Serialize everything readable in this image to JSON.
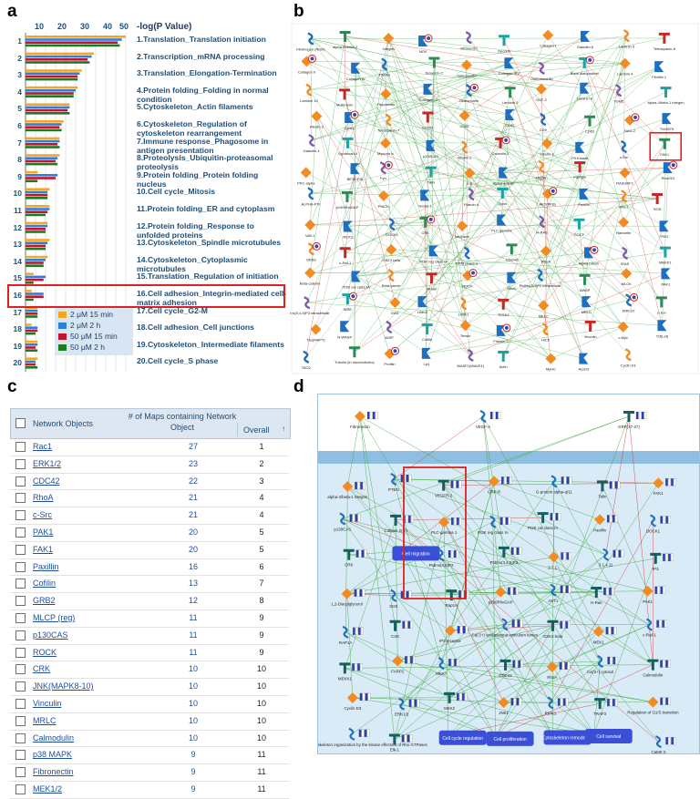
{
  "panels": {
    "a": "a",
    "b": "b",
    "c": "c",
    "d": "d"
  },
  "panel_a": {
    "axis_title": "-log(P Value)",
    "axis_ticks": [
      "10",
      "20",
      "30",
      "40",
      "50"
    ],
    "rows": [
      {
        "num": "1",
        "label": "1.Translation_Translation initiation"
      },
      {
        "num": "2",
        "label": "2.Transcription_mRNA processing"
      },
      {
        "num": "3",
        "label": "3.Translation_Elongation-Termination"
      },
      {
        "num": "4",
        "label": "4.Protein folding_Folding in normal condition"
      },
      {
        "num": "5",
        "label": "5.Cytoskeleton_Actin filaments"
      },
      {
        "num": "6",
        "label": "6.Cytoskeleton_Regulation of cytoskeleton rearrangement"
      },
      {
        "num": "7",
        "label": "7.Immune response_Phagosome in antigen presentation"
      },
      {
        "num": "8",
        "label": "8.Proteolysis_Ubiquitin-proteasomal proteolysis"
      },
      {
        "num": "9",
        "label": "9.Protein folding_Protein folding nucleus"
      },
      {
        "num": "10",
        "label": "10.Cell cycle_Mitosis"
      },
      {
        "num": "11",
        "label": "11.Protein folding_ER and cytoplasm"
      },
      {
        "num": "12",
        "label": "12.Protein folding_Response to unfolded proteins"
      },
      {
        "num": "13",
        "label": "13.Cytoskeleton_Spindle microtubules"
      },
      {
        "num": "14",
        "label": "14.Cytoskeleton_Cytoplasmic microtubules"
      },
      {
        "num": "15",
        "label": "15.Translation_Regulation of initiation"
      },
      {
        "num": "16",
        "label": "16.Cell adhesion_Integrin-mediated cell-matrix adhesion"
      },
      {
        "num": "17",
        "label": "17.Cell cycle_G2-M"
      },
      {
        "num": "18",
        "label": "18.Cell adhesion_Cell junctions"
      },
      {
        "num": "19",
        "label": "19.Cytoskeleton_Intermediate filaments"
      },
      {
        "num": "20",
        "label": "20.Cell cycle_S phase"
      }
    ],
    "legend": [
      {
        "label": "2 μM 15 min",
        "color": "#f5a623"
      },
      {
        "label": "2 μM 2 h",
        "color": "#2f7fd8"
      },
      {
        "label": "50 μM 15 min",
        "color": "#c4122f"
      },
      {
        "label": "50 μM 2 h",
        "color": "#1f7a1f"
      }
    ],
    "highlight_color": "#e02020"
  },
  "chart_data": {
    "type": "bar",
    "orientation": "horizontal",
    "categories": [
      "1",
      "2",
      "3",
      "4",
      "5",
      "6",
      "7",
      "8",
      "9",
      "10",
      "11",
      "12",
      "13",
      "14",
      "15",
      "16",
      "17",
      "18",
      "19",
      "20"
    ],
    "xlim": [
      0,
      50
    ],
    "series": [
      {
        "name": "2 μM 15 min",
        "values": [
          50,
          34,
          28,
          26,
          22,
          19,
          17,
          17,
          6,
          12,
          12,
          11,
          12,
          11,
          4,
          3,
          6,
          3,
          6,
          6
        ]
      },
      {
        "name": "2 μM 2 h",
        "values": [
          48,
          33,
          27,
          25,
          22,
          18,
          17,
          16,
          16,
          11,
          12,
          11,
          11,
          10,
          10,
          9,
          6,
          6,
          6,
          5
        ]
      },
      {
        "name": "50 μM 15 min",
        "values": [
          46,
          31,
          26,
          24,
          21,
          17,
          16,
          15,
          15,
          11,
          11,
          10,
          10,
          9,
          9,
          9,
          6,
          6,
          5,
          5
        ]
      },
      {
        "name": "50 μM 2 h",
        "values": [
          47,
          32,
          26,
          24,
          22,
          18,
          17,
          16,
          6,
          11,
          10,
          10,
          10,
          9,
          4,
          4,
          6,
          5,
          6,
          6
        ]
      }
    ]
  },
  "panel_b": {
    "nodes": [
      "Fibrinogen (fibrin)",
      "alpha-M/beta-2",
      "Integrin",
      "NOV",
      "Vitronectin",
      "Decorin",
      "Collagen I",
      "Galectin-6",
      "Laminin 5",
      "Tetraspanin-8",
      "Collagen II",
      "Collagen IV",
      "TIMAG",
      "Tenascin-C",
      "Osteonectin",
      "Collagen XIV",
      "Osteomodulin",
      "Bone sialoprotein",
      "Laminin 4",
      "Fibrillin 1",
      "Laminin 10",
      "Multimerin",
      "Fibronectin",
      "Collagen III",
      "Osteopontin",
      "Laminin 2",
      "OSF-2",
      "Laminin 8",
      "TGM2",
      "alpha-4/beta-1 integrin",
      "Fibulin-2",
      "Cyr61",
      "Tetraspanin-7",
      "CD151",
      "CD81",
      "CD82",
      "CD9",
      "CD63",
      "NAG-2",
      "TM4SF9",
      "Galectin-1",
      "Syndecan-4",
      "Mycoria lc",
      "p130CAS",
      "Kindlin-2",
      "Caveolin-1",
      "Fibulin-1",
      "Pil-Kinase",
      "c-Src",
      "FAK1",
      "PKC-alpha",
      "BETA-PIX",
      "Fyn",
      "Talin",
      "ILK",
      "Alpha-actinin",
      "Migfilin",
      "PI(P)5K",
      "RASGRF1",
      "RhoGDI",
      "ALPHA-PIX",
      "p190RhoGAP",
      "PINCH",
      "Tensin 1",
      "Filamin A",
      "Zyxin",
      "AKT(PKB)",
      "Paxillin",
      "RAC1",
      "SOS",
      "VAV-1",
      "NCK2",
      "DOCK1",
      "CRK",
      "Leupaxin",
      "PLC-gamma",
      "H-RAS",
      "COCF",
      "Hamartin",
      "TRIO",
      "GRB2",
      "c-Raf-1",
      "GSK3 beta",
      "PI3K reg class IA",
      "ERM proteins",
      "CDC42",
      "RhoA",
      "Alpha-parvin",
      "IRAS",
      "MEKK1",
      "Beta-catenin",
      "PI3K cat class IA",
      "Beta-parvin",
      "RHoB",
      "ROCK",
      "RhoC",
      "PtdIns(3,4)P2 intracellular",
      "WASP",
      "MLCK",
      "PAK1",
      "PtdIns(3,4,5)P3 intracellular",
      "WRE",
      "DIA1",
      "LIMK2",
      "LIMK1",
      "TESK2",
      "MELC",
      "MRLC",
      "ERK1/2",
      "c-Jun",
      "Tau(MAPT)",
      "N-WASP",
      "VASP",
      "Cofilin",
      "Tensin",
      "Filamin C",
      "HIC5",
      "Vinculin",
      "c-Myc",
      "Tcf(Lef)",
      "TAO2",
      "Tubulin (in microtubules)",
      "Profilin",
      "Lp4",
      "WASF1(WAVE1)",
      "Actin",
      "MyHC",
      "Arp2/3",
      "Cyclin D1"
    ]
  },
  "panel_c": {
    "headers": {
      "name": "Network Objects",
      "maps": "# of Maps containing Network Object",
      "overall": "Overall",
      "sort": "↑"
    },
    "rows": [
      {
        "name": "Rac1",
        "maps": "27",
        "overall": "1"
      },
      {
        "name": "ERK1/2",
        "maps": "23",
        "overall": "2"
      },
      {
        "name": "CDC42",
        "maps": "22",
        "overall": "3"
      },
      {
        "name": "RhoA",
        "maps": "21",
        "overall": "4"
      },
      {
        "name": "c-Src",
        "maps": "21",
        "overall": "4"
      },
      {
        "name": "PAK1",
        "maps": "20",
        "overall": "5"
      },
      {
        "name": "FAK1",
        "maps": "20",
        "overall": "5"
      },
      {
        "name": "Paxillin",
        "maps": "16",
        "overall": "6"
      },
      {
        "name": "Cofilin",
        "maps": "13",
        "overall": "7"
      },
      {
        "name": "GRB2",
        "maps": "12",
        "overall": "8"
      },
      {
        "name": "MLCP (reg)",
        "maps": "11",
        "overall": "9"
      },
      {
        "name": "p130CAS",
        "maps": "11",
        "overall": "9"
      },
      {
        "name": "ROCK",
        "maps": "11",
        "overall": "9"
      },
      {
        "name": "CRK",
        "maps": "10",
        "overall": "10"
      },
      {
        "name": "JNK(MAPK8-10)",
        "maps": "10",
        "overall": "10"
      },
      {
        "name": "Vinculin",
        "maps": "10",
        "overall": "10"
      },
      {
        "name": "MRLC",
        "maps": "10",
        "overall": "10"
      },
      {
        "name": "Calmodulin",
        "maps": "10",
        "overall": "10"
      },
      {
        "name": "p38 MAPK",
        "maps": "9",
        "overall": "11"
      },
      {
        "name": "Fibronectin",
        "maps": "9",
        "overall": "11"
      },
      {
        "name": "MEK1/2",
        "maps": "9",
        "overall": "11"
      }
    ]
  },
  "panel_d": {
    "nodes": [
      "Fibronectin",
      "VEGF-A",
      "GRP(17-27)",
      "alpha-2/beta-1 integrin",
      "PTEN",
      "VEGFR-2",
      "GRP-R",
      "G-protein alpha-q/11",
      "Talin",
      "FAK1",
      "p130CAS",
      "Calpain 2(m)",
      "PLC-gamma 1",
      "PI3K reg class IA",
      "PI3K cat class IA",
      "Paxillin",
      "DOCK1",
      "CRK",
      "Cell migration",
      "PtdIns(4,5)P2",
      "PtdIns(3,4,5)P3",
      "2.7.1.-",
      "3.1.4.11",
      "IP3",
      "1,2-Diacylglycerol",
      "SOS",
      "Rap1A",
      "p190RhoGAP",
      "AKT1",
      "H-Ras",
      "PAK1",
      "RAP1A",
      "C3G",
      "IP3 receptor",
      "Ca('2+) endoplasmic reticulum lumen",
      "GSK3 beta",
      "MEK1",
      "c-Raf-1",
      "MEKK1",
      "FARP2",
      "MKK7",
      "CDC42",
      "RhoA",
      "Ca('2+) cytosol",
      "Calmodulin",
      "Cyclin D3",
      "ERK1/2",
      "MEK2",
      "JNK1",
      "RIPK1",
      "TRAF3",
      "Regulation of G1/S transition",
      "Regulation of actin cytoskeleton organization by the kinase effectors of Rho GTPases",
      "Elk-1",
      "Cell cycle regulation",
      "Cell proliferation",
      "Cytoskeleton remodeling",
      "Cell survival",
      "CaMK II"
    ]
  }
}
